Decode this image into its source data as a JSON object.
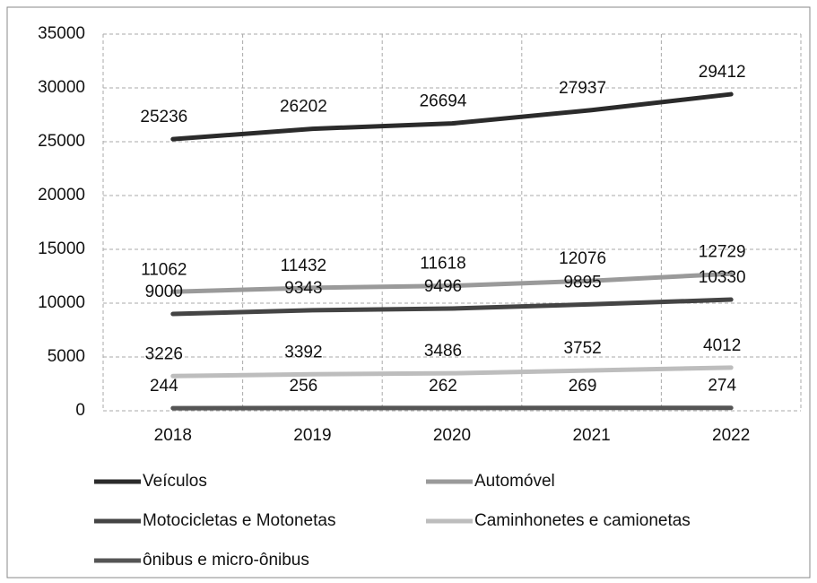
{
  "chart_data": {
    "type": "line",
    "categories": [
      "2018",
      "2019",
      "2020",
      "2021",
      "2022"
    ],
    "series": [
      {
        "name": "Veículos",
        "color": "#2b2b2b",
        "values": [
          25236,
          26202,
          26694,
          27937,
          29412
        ]
      },
      {
        "name": "Automóvel",
        "color": "#9a9a9a",
        "values": [
          11062,
          11432,
          11618,
          12076,
          12729
        ]
      },
      {
        "name": "Motocicletas e Motonetas",
        "color": "#444444",
        "values": [
          9000,
          9343,
          9496,
          9895,
          10330
        ]
      },
      {
        "name": "Caminhonetes e camionetas",
        "color": "#bdbdbd",
        "values": [
          3226,
          3392,
          3486,
          3752,
          4012
        ]
      },
      {
        "name": "ônibus e micro-ônibus",
        "color": "#555555",
        "values": [
          244,
          256,
          262,
          269,
          274
        ]
      }
    ],
    "ylim": [
      0,
      35000
    ],
    "yticks": [
      0,
      5000,
      10000,
      15000,
      20000,
      25000,
      30000,
      35000
    ],
    "grid": true
  }
}
